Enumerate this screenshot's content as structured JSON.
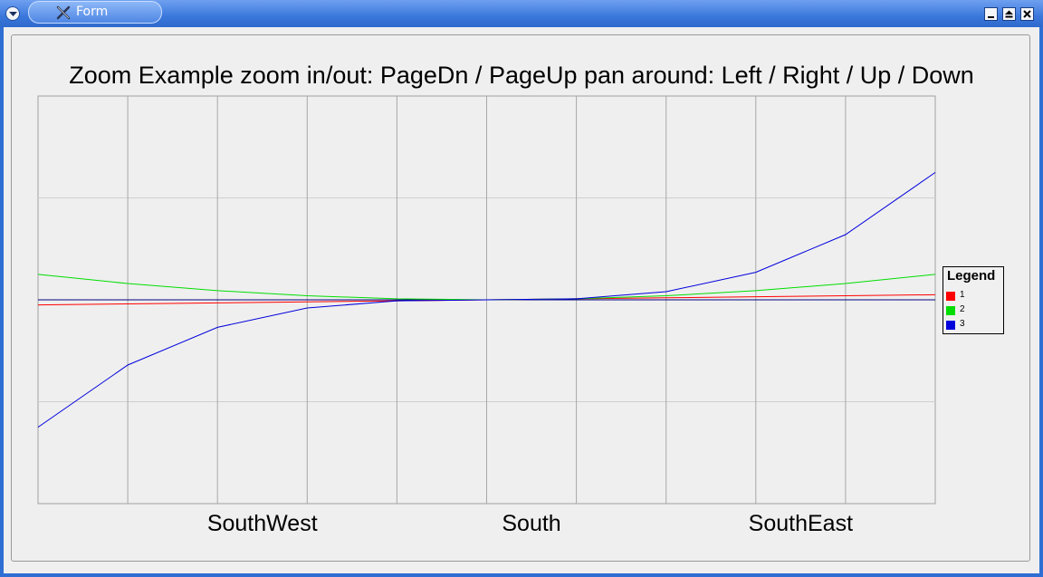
{
  "window": {
    "title": "Form"
  },
  "chart_data": {
    "type": "line",
    "title": "Zoom Example  zoom in/out: PageDn / PageUp  pan around: Left / Right / Up / Down",
    "xlabel": "",
    "ylabel": "",
    "x": [
      0,
      1,
      2,
      3,
      4,
      5,
      6,
      7,
      8,
      9,
      10
    ],
    "x_tick_labels": [
      {
        "x": 2.5,
        "label": "SouthWest"
      },
      {
        "x": 5.5,
        "label": "South"
      },
      {
        "x": 8.5,
        "label": "SouthEast"
      }
    ],
    "xlim": [
      0,
      10
    ],
    "ylim": [
      -200,
      200
    ],
    "y_gridlines": [
      -100,
      0,
      100
    ],
    "grid": true,
    "baseline": 0,
    "series": [
      {
        "name": "1",
        "color": "#ff0000",
        "values": [
          -5,
          -4,
          -3,
          -2,
          -1,
          0,
          1,
          2,
          3,
          4,
          5
        ]
      },
      {
        "name": "2",
        "color": "#00dd00",
        "values": [
          25,
          16,
          9,
          4,
          1,
          0,
          1,
          4,
          9,
          16,
          25
        ]
      },
      {
        "name": "3",
        "color": "#0000dd",
        "values": [
          -125,
          -64,
          -27,
          -8,
          -1,
          0,
          1,
          8,
          27,
          64,
          125
        ]
      }
    ],
    "legend": {
      "title": "Legend",
      "placement": "right"
    }
  }
}
